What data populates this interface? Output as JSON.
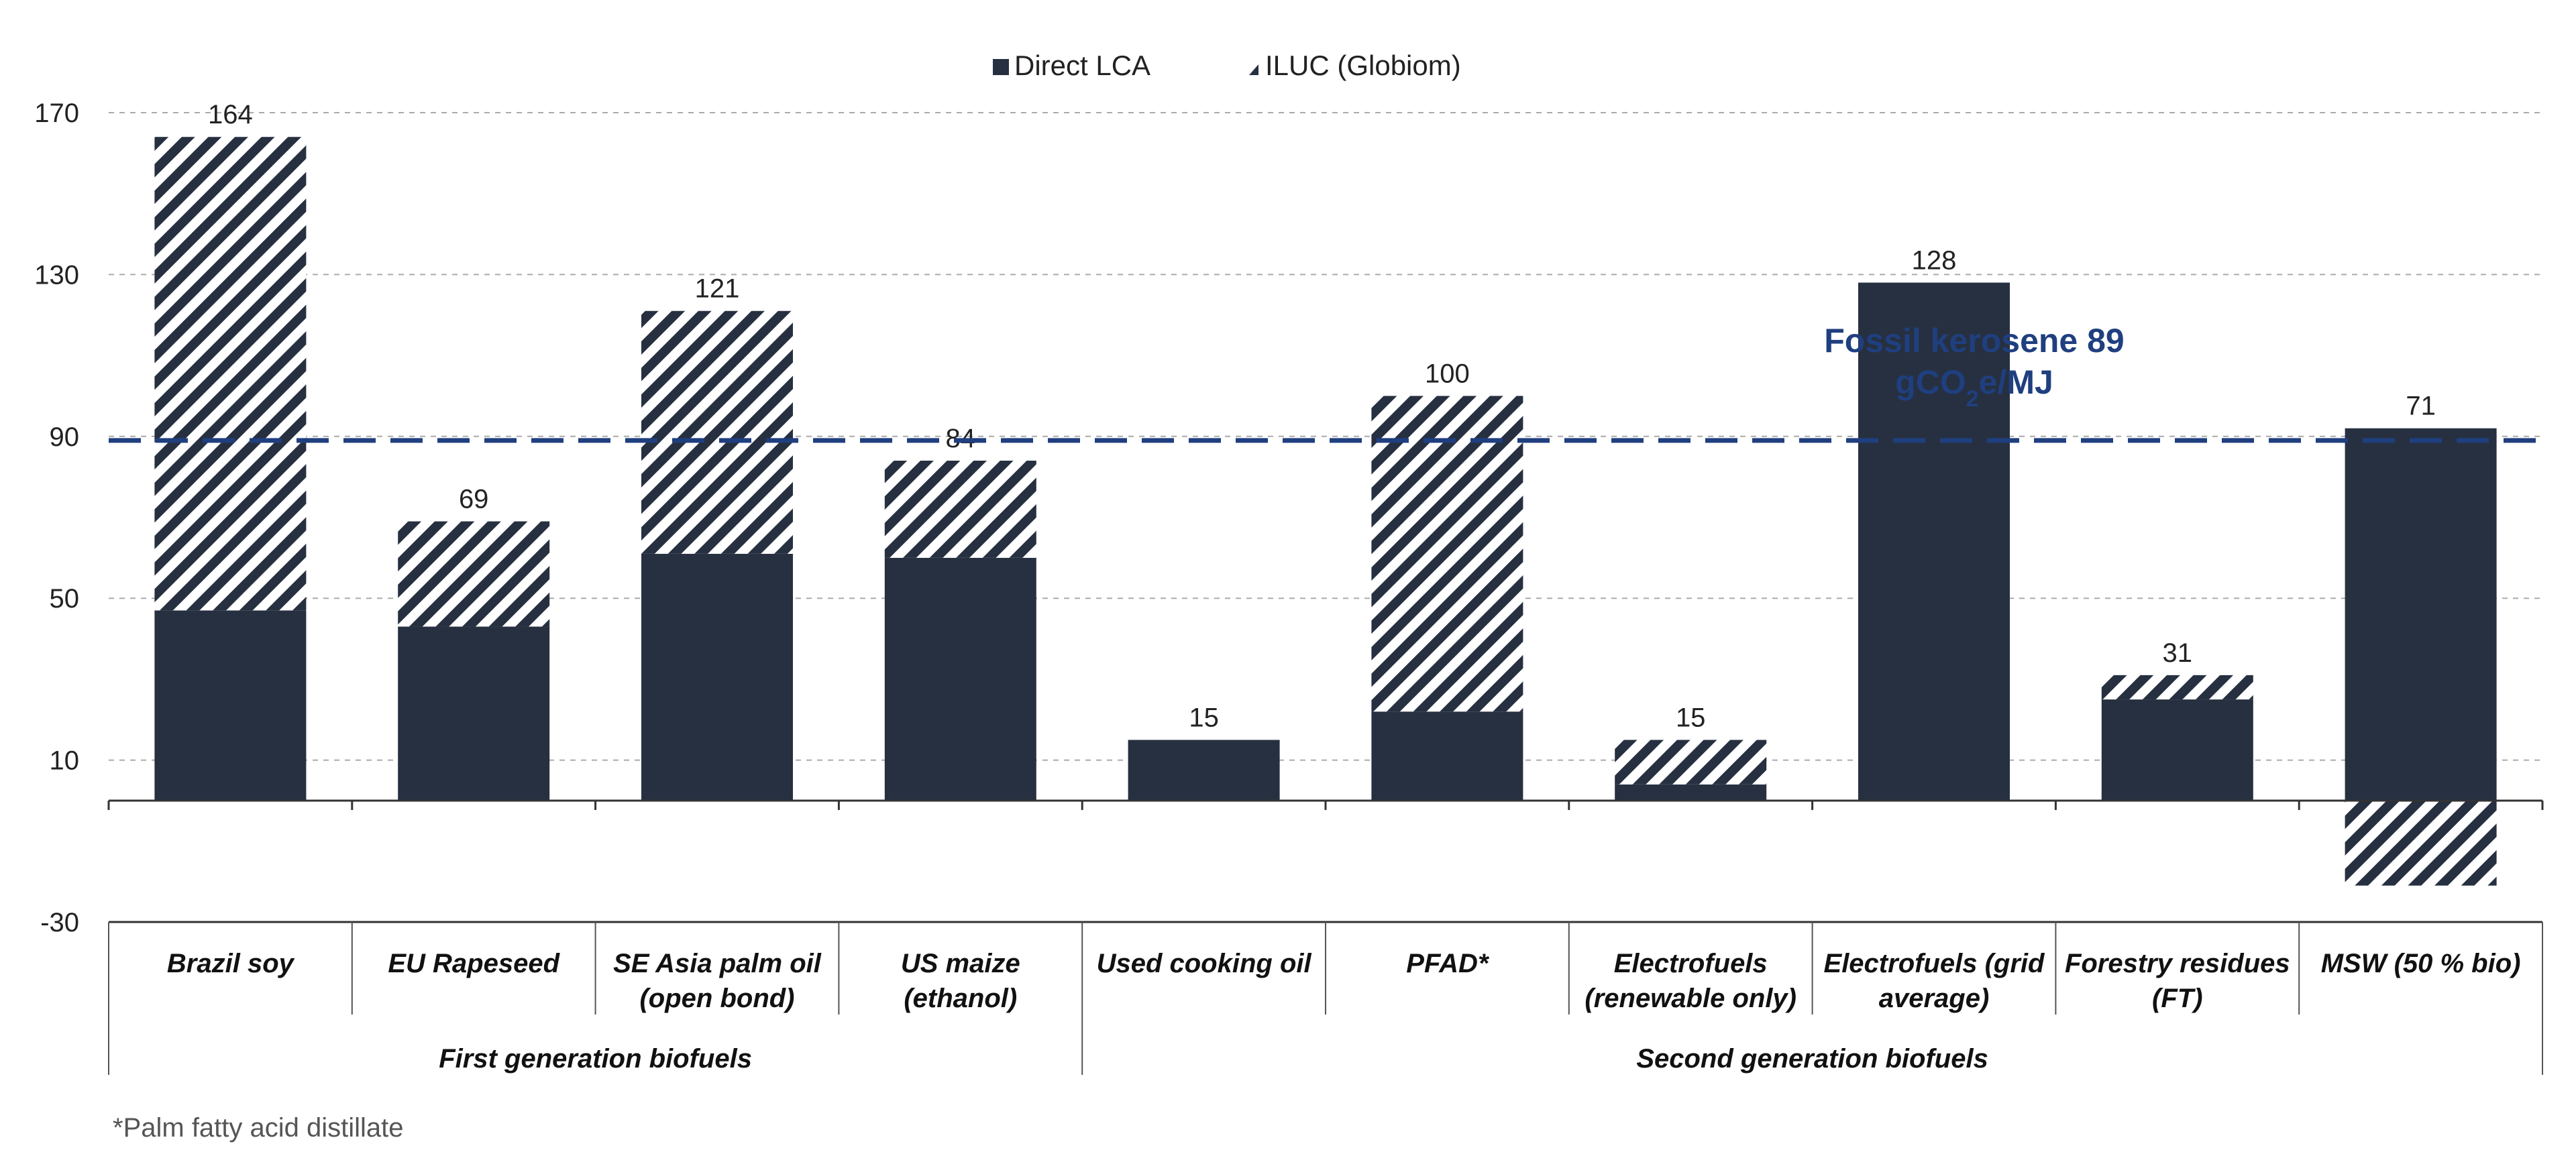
{
  "chart_data": {
    "type": "bar",
    "stacked": true,
    "categories": [
      [
        "Brazil soy"
      ],
      [
        "EU Rapeseed"
      ],
      [
        "SE Asia palm oil",
        "(open bond)"
      ],
      [
        "US maize",
        "(ethanol)"
      ],
      [
        "Used cooking oil"
      ],
      [
        "PFAD*"
      ],
      [
        "Electrofuels",
        "(renewable only)"
      ],
      [
        "Electrofuels (grid",
        "average)"
      ],
      [
        "Forestry residues",
        "(FT)"
      ],
      [
        "MSW (50 % bio)"
      ]
    ],
    "groups": [
      {
        "label": "First generation biofuels",
        "start": 0,
        "end": 3
      },
      {
        "label": "Second generation biofuels",
        "start": 4,
        "end": 9
      }
    ],
    "series": [
      {
        "name": "Direct LCA",
        "values": [
          47,
          43,
          61,
          60,
          15,
          22,
          4,
          128,
          25,
          92
        ],
        "color": "#263040",
        "pattern": "solid"
      },
      {
        "name": "ILUC (Globiom)",
        "values": [
          117,
          26,
          60,
          24,
          0,
          78,
          11,
          0,
          6,
          -21
        ],
        "color": "#263040",
        "pattern": "hatched"
      }
    ],
    "totals": [
      "164",
      "69",
      "121",
      "84",
      "15",
      "100",
      "15",
      "128",
      "31",
      "71"
    ],
    "reference_line": {
      "value": 89,
      "label_line1": "Fossil kerosene 89",
      "label_line2_pre": "gCO",
      "label_line2_sub": "2",
      "label_line2_post": "e/MJ",
      "color": "#1f3f7f"
    },
    "y_ticks": [
      "170",
      "130",
      "90",
      "50",
      "10",
      "-30"
    ],
    "y_tick_values": [
      170,
      130,
      90,
      50,
      10,
      -30
    ],
    "ylim": [
      -30,
      170
    ],
    "grid": true,
    "legend_position": "top-center",
    "footnote": "*Palm fatty acid distillate"
  }
}
